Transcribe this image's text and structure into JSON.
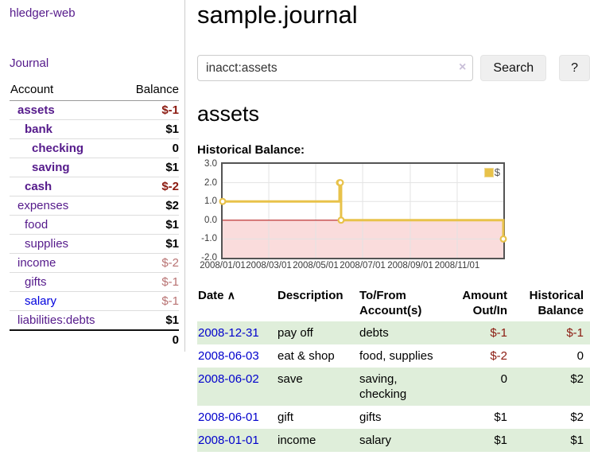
{
  "colors": {
    "link_purple": "#551a8b",
    "link_blue": "#0000dd",
    "negative_strong": "#8b1a10",
    "negative_muted": "#b87272",
    "row_stripe_green": "#dfeeda",
    "chart_line_gold": "#e8c24a",
    "chart_negative_fill": "#fadcdc",
    "chart_zero_line": "#bb2222"
  },
  "sidebar": {
    "brand": "hledger-web",
    "nav": {
      "journal": "Journal"
    },
    "accounts_table": {
      "headers": {
        "account": "Account",
        "balance": "Balance"
      },
      "rows": [
        {
          "account": "assets",
          "balance": "$-1"
        },
        {
          "account": "bank",
          "balance": "$1"
        },
        {
          "account": "checking",
          "balance": "0"
        },
        {
          "account": "saving",
          "balance": "$1"
        },
        {
          "account": "cash",
          "balance": "$-2"
        },
        {
          "account": "expenses",
          "balance": "$2"
        },
        {
          "account": "food",
          "balance": "$1"
        },
        {
          "account": "supplies",
          "balance": "$1"
        },
        {
          "account": "income",
          "balance": "$-2"
        },
        {
          "account": "gifts",
          "balance": "$-1"
        },
        {
          "account": "salary",
          "balance": "$-1"
        },
        {
          "account": "liabilities:debts",
          "balance": "$1"
        }
      ],
      "total": "0"
    }
  },
  "header": {
    "title": "sample.journal"
  },
  "search": {
    "value": "inacct:assets",
    "clear_icon": "×",
    "search_button": "Search",
    "help_button": "?"
  },
  "register": {
    "account_heading": "assets",
    "chart_title": "Historical Balance:"
  },
  "chart_data": {
    "type": "line",
    "title": "Historical Balance:",
    "x_unit": "days since 2008-01-01",
    "xlim": [
      0,
      365
    ],
    "ylim": [
      -2,
      3
    ],
    "grid": true,
    "legend_position": "top-right",
    "series": [
      {
        "name": "$",
        "color": "#e8c24a",
        "marker_fill": "#ffffff",
        "steps": true,
        "points": [
          {
            "x": 0,
            "y": 1,
            "date": "2008-01-01"
          },
          {
            "x": 152,
            "y": 2,
            "date": "2008-06-01"
          },
          {
            "x": 153,
            "y": 2,
            "date": "2008-06-02"
          },
          {
            "x": 154,
            "y": 0,
            "date": "2008-06-03"
          },
          {
            "x": 365,
            "y": -1,
            "date": "2008-12-31"
          }
        ]
      }
    ],
    "xticks": [
      {
        "x": 0,
        "label": "2008/01/01"
      },
      {
        "x": 60,
        "label": "2008/03/01"
      },
      {
        "x": 121,
        "label": "2008/05/01"
      },
      {
        "x": 182,
        "label": "2008/07/01"
      },
      {
        "x": 244,
        "label": "2008/09/01"
      },
      {
        "x": 305,
        "label": "2008/11/01"
      }
    ],
    "yticks": [
      {
        "v": 3,
        "label": "3.0"
      },
      {
        "v": 2,
        "label": "2.0"
      },
      {
        "v": 1,
        "label": "1.0"
      },
      {
        "v": 0,
        "label": "0.0"
      },
      {
        "v": -1,
        "label": "-1.0"
      },
      {
        "v": -2,
        "label": "-2.0"
      }
    ],
    "grid_color": "#e3e3e3",
    "negative_region_color": "#fadcdc",
    "zero_line_color": "#bb2222"
  },
  "register_table": {
    "headers": {
      "date": "Date",
      "sort_icon": "∧",
      "description": "Description",
      "tofrom": "To/From Account(s)",
      "amount": "Amount Out/In",
      "balance": "Historical Balance"
    },
    "rows": [
      {
        "date": "2008-12-31",
        "description": "pay off",
        "tofrom": "debts",
        "amount": "$-1",
        "balance": "$-1"
      },
      {
        "date": "2008-06-03",
        "description": "eat & shop",
        "tofrom": "food, supplies",
        "amount": "$-2",
        "balance": "0"
      },
      {
        "date": "2008-06-02",
        "description": "save",
        "tofrom": "saving, checking",
        "amount": "0",
        "balance": "$2"
      },
      {
        "date": "2008-06-01",
        "description": "gift",
        "tofrom": "gifts",
        "amount": "$1",
        "balance": "$2"
      },
      {
        "date": "2008-01-01",
        "description": "income",
        "tofrom": "salary",
        "amount": "$1",
        "balance": "$1"
      }
    ]
  }
}
